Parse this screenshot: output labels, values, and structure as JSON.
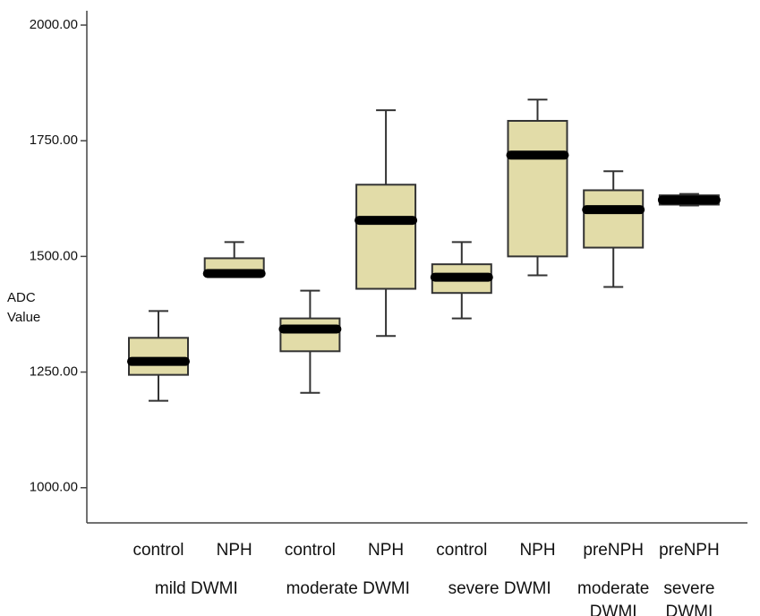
{
  "chart_data": {
    "type": "box",
    "y_label": "ADC Value",
    "ylim": [
      924,
      2031
    ],
    "yticks": [
      {
        "value": 1000,
        "label": "1000.00"
      },
      {
        "value": 1250,
        "label": "1250.00"
      },
      {
        "value": 1500,
        "label": "1500.00"
      },
      {
        "value": 1750,
        "label": "1750.00"
      },
      {
        "value": 2000,
        "label": "2000.00"
      }
    ],
    "box_color": "#e2dca8",
    "groups": [
      {
        "label": "mild DWMI",
        "boxes": [
          {
            "name": "control",
            "whislo": 1188,
            "q1": 1244,
            "med": 1273,
            "q3": 1324,
            "whishi": 1382
          },
          {
            "name": "NPH",
            "whislo": 1460,
            "q1": 1460,
            "med": 1463,
            "q3": 1496,
            "whishi": 1531
          }
        ]
      },
      {
        "label": "moderate DWMI",
        "boxes": [
          {
            "name": "control",
            "whislo": 1205,
            "q1": 1295,
            "med": 1343,
            "q3": 1366,
            "whishi": 1426
          },
          {
            "name": "NPH",
            "whislo": 1328,
            "q1": 1430,
            "med": 1578,
            "q3": 1655,
            "whishi": 1816
          }
        ]
      },
      {
        "label": "severe DWMI",
        "boxes": [
          {
            "name": "control",
            "whislo": 1366,
            "q1": 1421,
            "med": 1455,
            "q3": 1483,
            "whishi": 1531
          },
          {
            "name": "NPH",
            "whislo": 1459,
            "q1": 1500,
            "med": 1719,
            "q3": 1793,
            "whishi": 1839
          }
        ]
      },
      {
        "label": "moderate DWMI",
        "boxes": [
          {
            "name": "preNPH",
            "whislo": 1434,
            "q1": 1519,
            "med": 1601,
            "q3": 1643,
            "whishi": 1684
          }
        ]
      },
      {
        "label": "severe DWMI",
        "boxes": [
          {
            "name": "preNPH",
            "whislo": 1610,
            "q1": 1612,
            "med": 1622,
            "q3": 1632,
            "whishi": 1635
          }
        ]
      }
    ]
  }
}
